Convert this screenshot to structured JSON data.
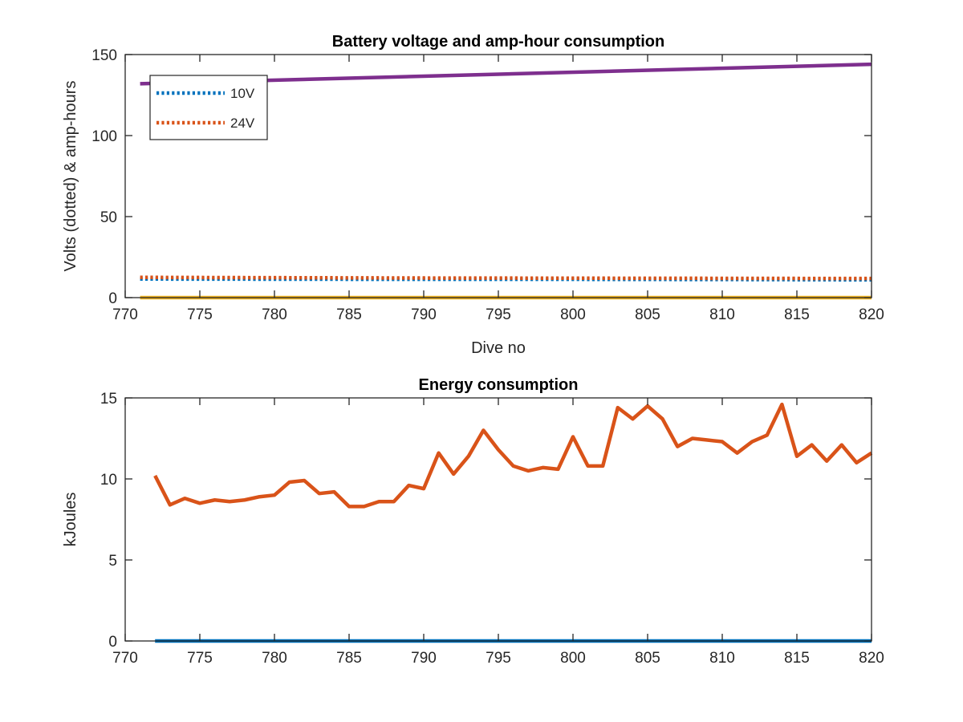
{
  "chart_data": [
    {
      "type": "line",
      "title": "Battery voltage and amp-hour consumption",
      "xlabel": "Dive no",
      "ylabel": "Volts (dotted) & amp-hours",
      "xlim": [
        770,
        820
      ],
      "ylim": [
        0,
        150
      ],
      "xticks": [
        770,
        775,
        780,
        785,
        790,
        795,
        800,
        805,
        810,
        815,
        820
      ],
      "yticks": [
        0,
        50,
        100,
        150
      ],
      "grid": false,
      "legend_position": "top-left",
      "series": [
        {
          "name": "10V",
          "style": "dotted",
          "color": "#0072BD",
          "in_legend": true,
          "x": [
            771,
            780,
            790,
            800,
            810,
            820
          ],
          "y": [
            11.5,
            11.4,
            11.3,
            11.3,
            11.2,
            11.0
          ]
        },
        {
          "name": "24V",
          "style": "dotted",
          "color": "#D95319",
          "in_legend": true,
          "x": [
            771,
            780,
            790,
            800,
            810,
            820
          ],
          "y": [
            12.5,
            12.3,
            12.1,
            12.0,
            11.9,
            11.8
          ]
        },
        {
          "style": "solid",
          "color": "#EDB120",
          "in_legend": false,
          "x": [
            771,
            820
          ],
          "y": [
            0,
            0
          ]
        },
        {
          "style": "solid",
          "color": "#7E2F8E",
          "in_legend": false,
          "x": [
            771,
            820
          ],
          "y": [
            132,
            144
          ]
        }
      ]
    },
    {
      "type": "line",
      "title": "Energy consumption",
      "xlabel": "",
      "ylabel": "kJoules",
      "xlim": [
        770,
        820
      ],
      "ylim": [
        0,
        15
      ],
      "xticks": [
        770,
        775,
        780,
        785,
        790,
        795,
        800,
        805,
        810,
        815,
        820
      ],
      "yticks": [
        0,
        5,
        10,
        15
      ],
      "grid": false,
      "series": [
        {
          "style": "solid",
          "color": "#0072BD",
          "x": [
            772,
            820
          ],
          "y": [
            0,
            0
          ]
        },
        {
          "style": "solid",
          "color": "#D95319",
          "x": [
            772,
            773,
            774,
            775,
            776,
            777,
            778,
            779,
            780,
            781,
            782,
            783,
            784,
            785,
            786,
            787,
            788,
            789,
            790,
            791,
            792,
            793,
            794,
            795,
            796,
            797,
            798,
            799,
            800,
            801,
            802,
            803,
            804,
            805,
            806,
            807,
            808,
            809,
            810,
            811,
            812,
            813,
            814,
            815,
            816,
            817,
            818,
            819,
            820
          ],
          "y": [
            10.2,
            8.4,
            8.8,
            8.5,
            8.7,
            8.6,
            8.7,
            8.9,
            9.0,
            9.8,
            9.9,
            9.1,
            9.2,
            8.3,
            8.3,
            8.6,
            8.6,
            9.6,
            9.4,
            11.6,
            10.3,
            11.4,
            13.0,
            11.8,
            10.8,
            10.5,
            10.7,
            10.6,
            12.6,
            10.8,
            10.8,
            14.4,
            13.7,
            14.5,
            13.7,
            12.0,
            12.5,
            12.4,
            12.3,
            11.6,
            12.3,
            12.7,
            14.6,
            11.4,
            12.1,
            11.1,
            12.1,
            11.0,
            11.6
          ]
        }
      ]
    }
  ]
}
